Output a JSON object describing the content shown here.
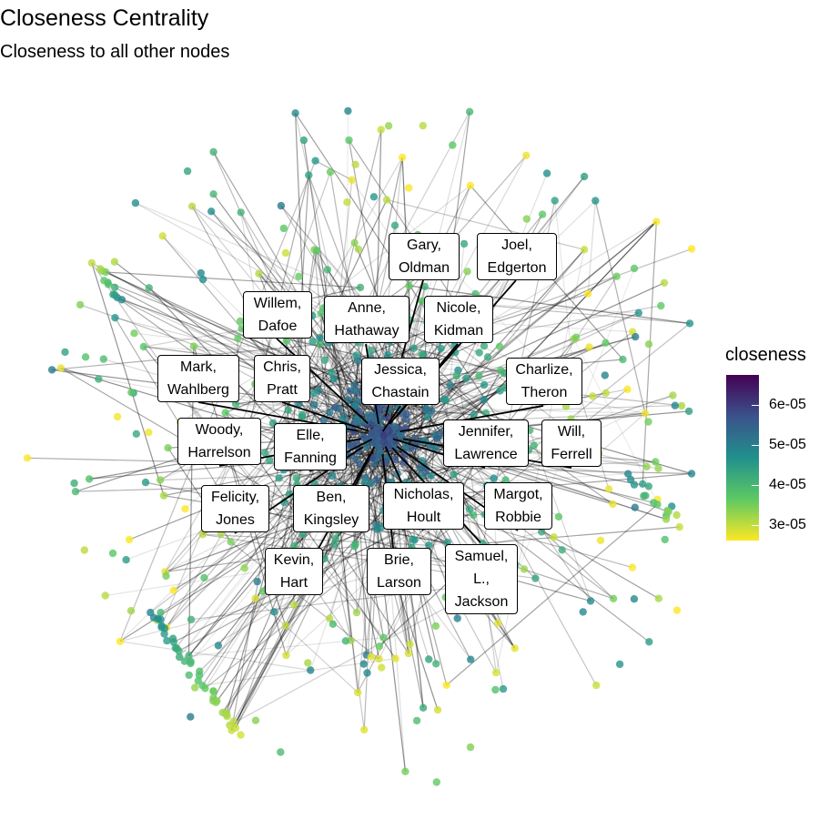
{
  "title": "Closeness Centrality",
  "subtitle": "Closeness to all other nodes",
  "legend": {
    "title": "closeness",
    "ticks": [
      "6e-05",
      "5e-05",
      "4e-05",
      "3e-05"
    ],
    "colors": [
      "#440154",
      "#3b528b",
      "#21908d",
      "#5dc963",
      "#fde725"
    ]
  },
  "labels": [
    {
      "line1": "Gary,",
      "line2": "Oldman"
    },
    {
      "line1": "Joel,",
      "line2": "Edgerton"
    },
    {
      "line1": "Willem,",
      "line2": "Dafoe"
    },
    {
      "line1": "Anne,",
      "line2": "Hathaway"
    },
    {
      "line1": "Nicole,",
      "line2": "Kidman"
    },
    {
      "line1": "Mark,",
      "line2": "Wahlberg"
    },
    {
      "line1": "Chris,",
      "line2": "Pratt"
    },
    {
      "line1": "Jessica,",
      "line2": "Chastain"
    },
    {
      "line1": "Charlize,",
      "line2": "Theron"
    },
    {
      "line1": "Woody,",
      "line2": "Harrelson"
    },
    {
      "line1": "Elle,",
      "line2": "Fanning"
    },
    {
      "line1": "Jennifer,",
      "line2": "Lawrence"
    },
    {
      "line1": "Will,",
      "line2": "Ferrell"
    },
    {
      "line1": "Felicity,",
      "line2": "Jones"
    },
    {
      "line1": "Ben,",
      "line2": "Kingsley"
    },
    {
      "line1": "Nicholas,",
      "line2": "Hoult"
    },
    {
      "line1": "Margot,",
      "line2": "Robbie"
    },
    {
      "line1": "Kevin,",
      "line2": "Hart"
    },
    {
      "line1": "Brie,",
      "line2": "Larson"
    },
    {
      "line1": "Samuel,",
      "line2": "L.,",
      "line3": "Jackson"
    }
  ]
}
